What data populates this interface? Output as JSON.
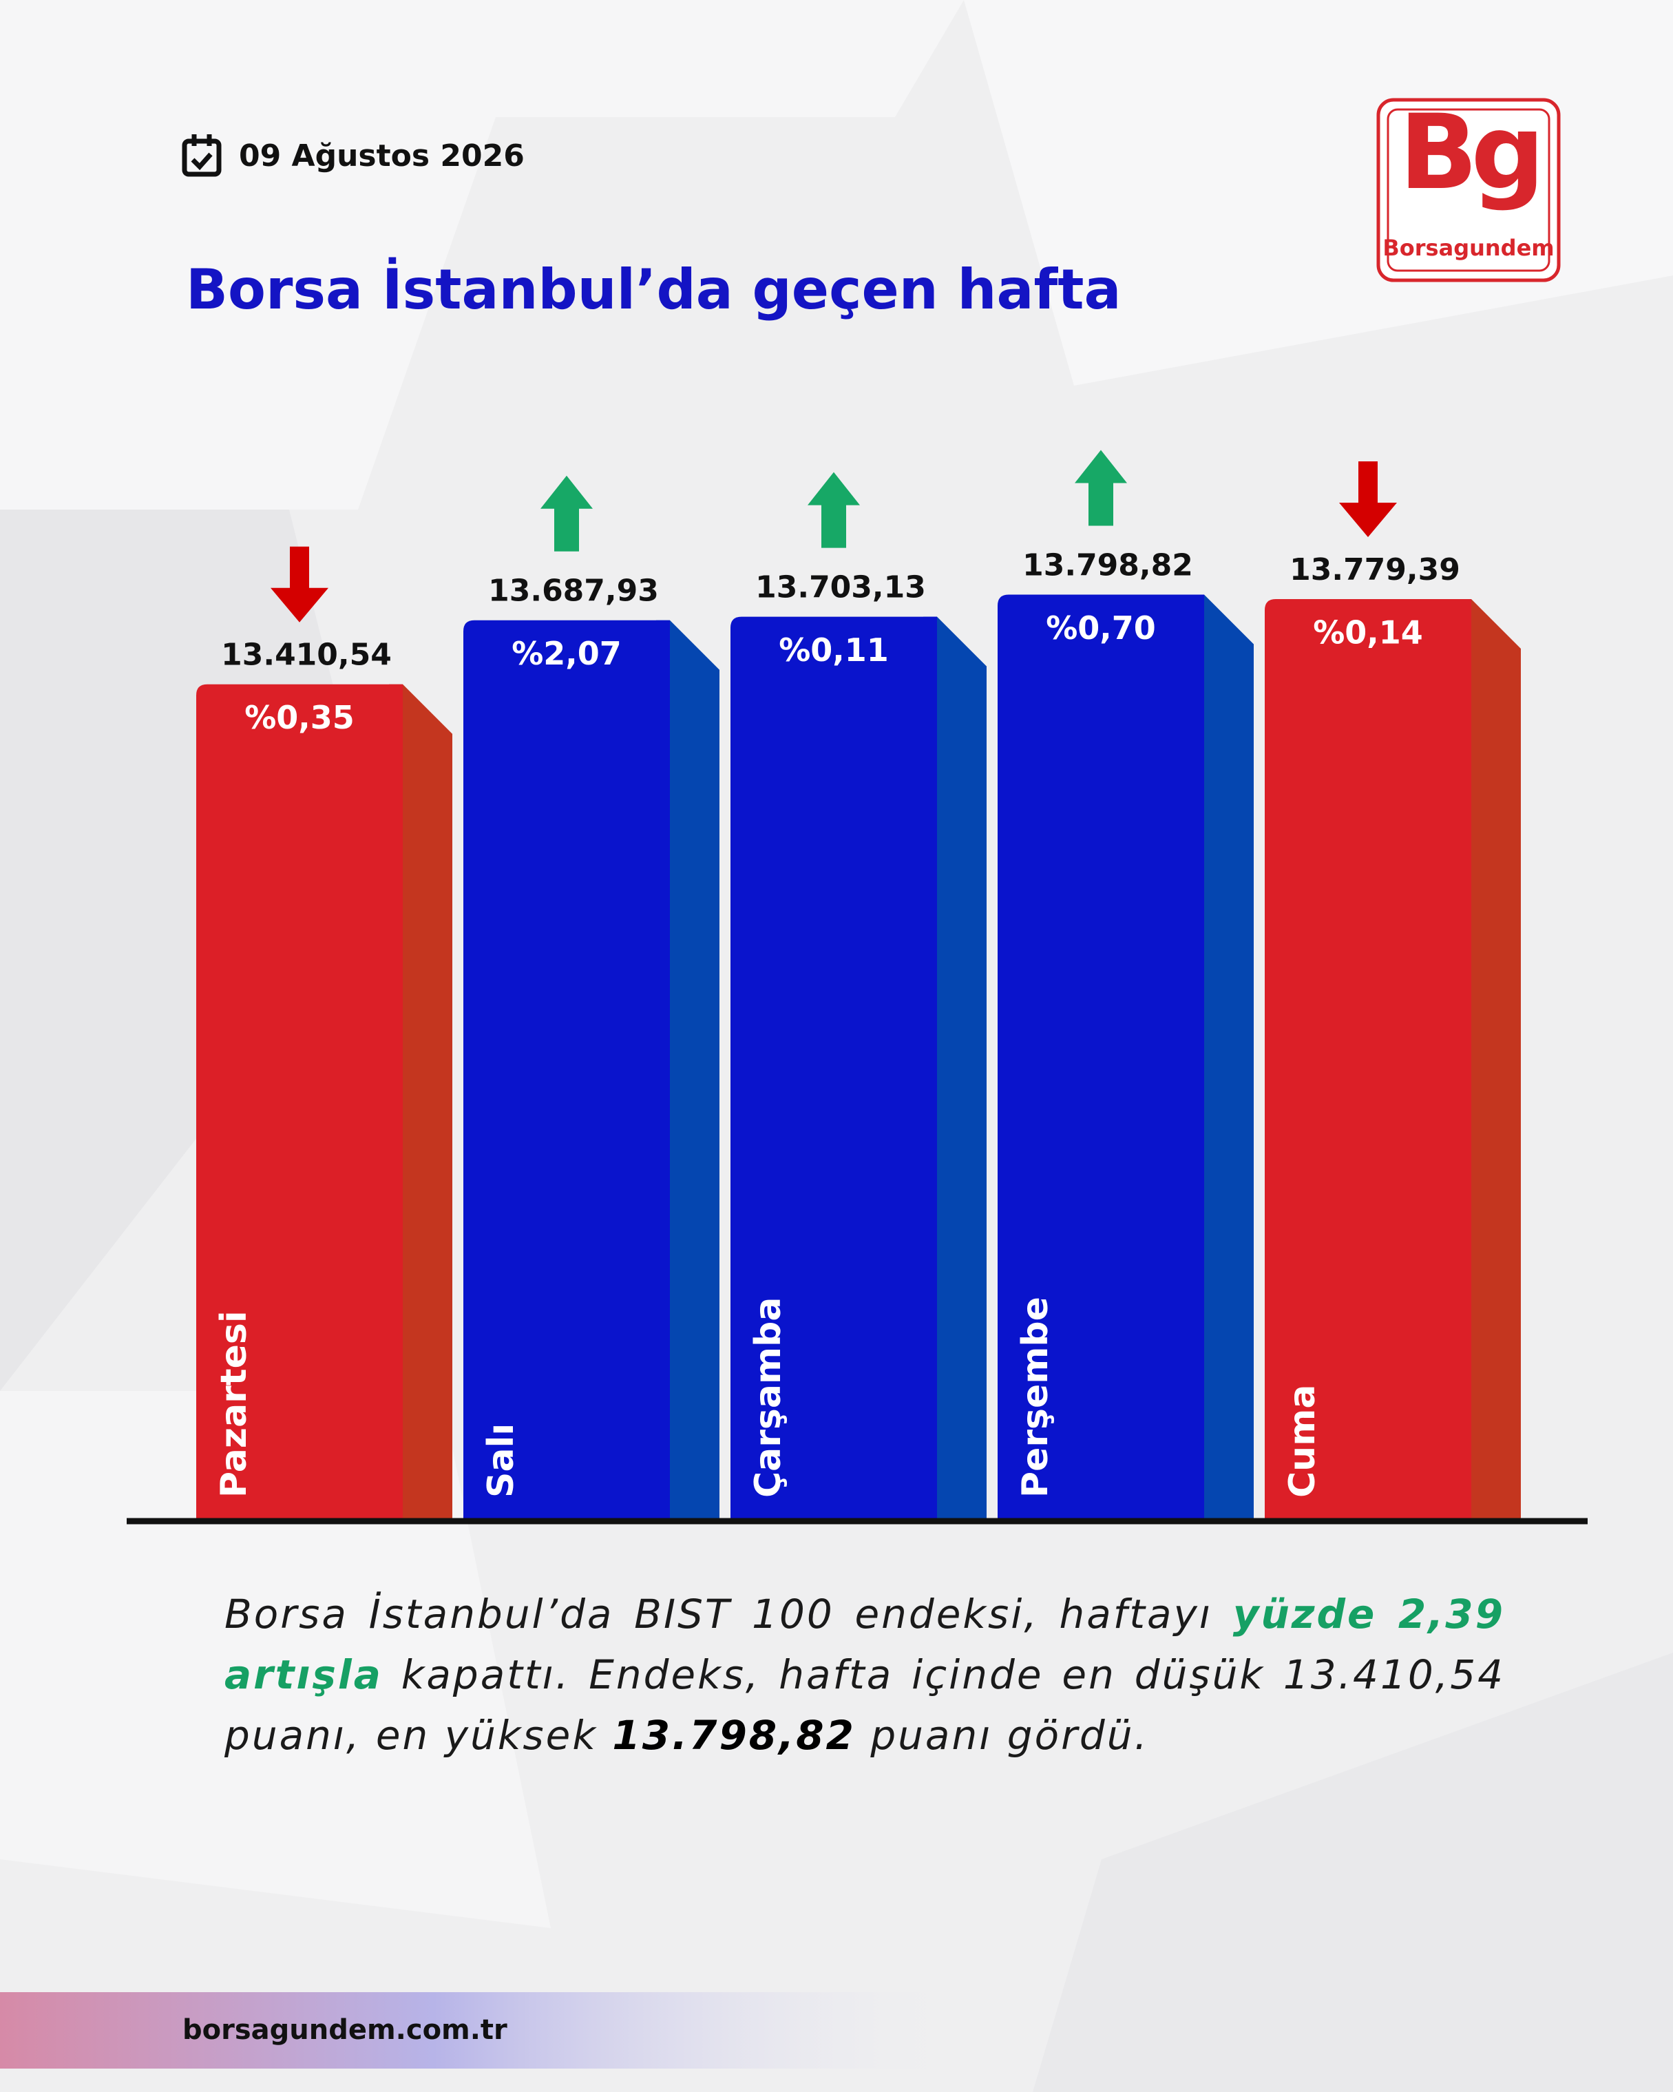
{
  "header": {
    "date": "09 Ağustos 2026",
    "logo_mark": "Bg",
    "logo_name": "Borsagundem"
  },
  "chart_data": {
    "type": "bar",
    "title": "Borsa İstanbul’da geçen hafta",
    "categories": [
      "Pazartesi",
      "Salı",
      "Çarşamba",
      "Perşembe",
      "Cuma"
    ],
    "values": [
      13410.54,
      13687.93,
      13703.13,
      13798.82,
      13779.39
    ],
    "value_labels": [
      "13.410,54",
      "13.687,93",
      "13.703,13",
      "13.798,82",
      "13.779,39"
    ],
    "changes": [
      "%0,35",
      "%2,07",
      "%0,11",
      "%0,70",
      "%0,14"
    ],
    "directions": [
      "down",
      "up",
      "up",
      "up",
      "down"
    ],
    "colors": [
      "#dc1f27",
      "#0a14cc",
      "#0a14cc",
      "#0a14cc",
      "#dc1f27"
    ],
    "side_colors": [
      "#c4361f",
      "#0546b0",
      "#0546b0",
      "#0546b0",
      "#c4361f"
    ],
    "arrow_colors": {
      "up": "#17a866",
      "down": "#d40000"
    },
    "ylim": [
      9800,
      14000
    ]
  },
  "summary": {
    "parts": [
      {
        "text": "Borsa İstanbul’da BIST 100 endeksi, haftayı ",
        "style": "normal"
      },
      {
        "text": "yüzde 2,39 artışla",
        "style": "highlight"
      },
      {
        "text": " kapattı. Endeks, hafta içinde en düşük 13.410,54 puanı, en yüksek ",
        "style": "normal"
      },
      {
        "text": "13.798,82",
        "style": "strong"
      },
      {
        "text": " puanı gördü.",
        "style": "normal"
      }
    ]
  },
  "footer": {
    "url": "borsagundem.com.tr"
  }
}
